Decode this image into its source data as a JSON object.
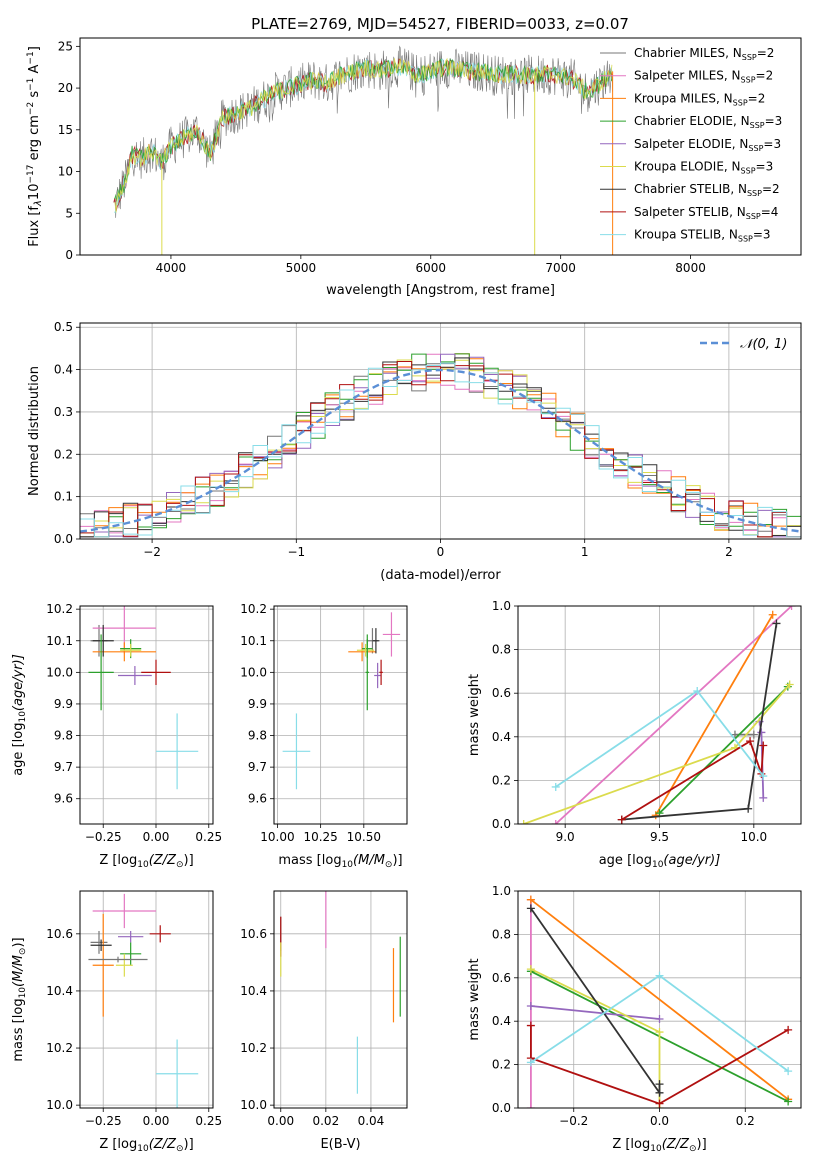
{
  "figure_title": "PLATE=2769, MJD=54527, FIBERID=0033, z=0.07",
  "colors": {
    "grid": "#b0b0b0",
    "model_colors": [
      "#777777",
      "#e377c2",
      "#ff7f0e",
      "#2ca02c",
      "#9467bd",
      "#dbdb4d",
      "#333333",
      "#b01010",
      "#88dde8"
    ]
  },
  "chart_data": [
    {
      "id": "spectrum",
      "type": "line",
      "title": "PLATE=2769, MJD=54527, FIBERID=0033, z=0.07",
      "xlabel": "wavelength [Angstrom, rest frame]",
      "ylabel_main": "Flux [f",
      "ylabel_sub": "λ",
      "ylabel_rest": "10",
      "ylabel_exp": "−17",
      "ylabel_units": " erg cm",
      "ylabel_exp2": "−2",
      "ylabel_s": " s",
      "ylabel_exp3": "−1",
      "ylabel_A": " A",
      "ylabel_exp4": "−1",
      "ylabel_end": "]",
      "xlim": [
        3300,
        8850
      ],
      "ylim": [
        0,
        26
      ],
      "xticks": [
        "4000",
        "5000",
        "6000",
        "7000",
        "8000"
      ],
      "yticks": [
        "0",
        "5",
        "10",
        "15",
        "20",
        "25"
      ],
      "xtick_values": [
        4000,
        5000,
        6000,
        7000,
        8000
      ],
      "ytick_values": [
        0,
        5,
        10,
        15,
        20,
        25
      ],
      "grid": false,
      "legend_position": "right",
      "continuum_x": [
        3560,
        3650,
        3700,
        3780,
        3850,
        3930,
        4000,
        4100,
        4200,
        4300,
        4400,
        4500,
        4600,
        4700,
        4800,
        4900,
        5000,
        5100,
        5200,
        5300,
        5400,
        5500,
        5600,
        5700,
        5800,
        5900,
        6000,
        6100,
        6200,
        6300,
        6400,
        6500,
        6600,
        6700,
        6800,
        6900,
        7000,
        7100,
        7200,
        7300,
        7400
      ],
      "continuum_y": [
        5.5,
        9,
        12,
        11.5,
        12.5,
        11,
        13,
        14,
        15,
        12,
        16.5,
        17,
        17.5,
        18.5,
        19.5,
        20,
        20.5,
        21,
        20.5,
        21.5,
        22,
        22.5,
        22,
        22.5,
        22.5,
        21.5,
        22,
        22.5,
        22.3,
        22,
        22,
        21.5,
        21.7,
        21.5,
        21.5,
        21.7,
        21.5,
        21,
        19.5,
        20.5,
        22
      ],
      "legend": [
        {
          "base": "Chabrier MILES, N",
          "sub": "SSP",
          "tail": "=2"
        },
        {
          "base": "Salpeter MILES, N",
          "sub": "SSP",
          "tail": "=2"
        },
        {
          "base": "Kroupa MILES, N",
          "sub": "SSP",
          "tail": "=2"
        },
        {
          "base": "Chabrier ELODIE, N",
          "sub": "SSP",
          "tail": "=3"
        },
        {
          "base": "Salpeter ELODIE, N",
          "sub": "SSP",
          "tail": "=3"
        },
        {
          "base": "Kroupa ELODIE, N",
          "sub": "SSP",
          "tail": "=3"
        },
        {
          "base": "Chabrier STELIB, N",
          "sub": "SSP",
          "tail": "=2"
        },
        {
          "base": "Salpeter STELIB, N",
          "sub": "SSP",
          "tail": "=4"
        },
        {
          "base": "Kroupa STELIB, N",
          "sub": "SSP",
          "tail": "=3"
        }
      ]
    },
    {
      "id": "residuals",
      "type": "line",
      "xlabel": "(data-model)/error",
      "ylabel": "Normed distribution",
      "xlim": [
        -2.5,
        2.5
      ],
      "ylim": [
        0,
        0.51
      ],
      "xticks": [
        "−2",
        "−1",
        "0",
        "1",
        "2"
      ],
      "xtick_values": [
        -2,
        -1,
        0,
        1,
        2
      ],
      "yticks": [
        "0.0",
        "0.1",
        "0.2",
        "0.3",
        "0.4",
        "0.5"
      ],
      "ytick_values": [
        0,
        0.1,
        0.2,
        0.3,
        0.4,
        0.5
      ],
      "grid": true,
      "legend_label": "𝒩(0, 1)",
      "legend_position": "top-right",
      "gaussian": {
        "mean": 0,
        "sigma": 1,
        "color": "#5b8fd6"
      },
      "bin_width": 0.1
    },
    {
      "id": "age-vs-Z",
      "type": "scatter",
      "xlabel": "Z [log",
      "xlabel_sub": "10",
      "xlabel_tail": "(Z/Z",
      "xlabel_sun": "⊙",
      "xlabel_end": ")]",
      "ylabel": "age  [log",
      "ylabel_sub": "10",
      "ylabel_tail": "(age/yr)]",
      "xlim": [
        -0.36,
        0.27
      ],
      "ylim": [
        9.52,
        10.21
      ],
      "xticks": [
        "−0.25",
        "0.00",
        "0.25"
      ],
      "xtick_values": [
        -0.25,
        0,
        0.25
      ],
      "yticks": [
        "9.6",
        "9.7",
        "9.8",
        "9.9",
        "10.0",
        "10.1",
        "10.2"
      ],
      "ytick_values": [
        9.6,
        9.7,
        9.8,
        9.9,
        10.0,
        10.1,
        10.2
      ],
      "grid": true,
      "points": [
        {
          "x": -0.27,
          "xerr": 0.04,
          "y": 10.1,
          "yerr": 0.05,
          "c": 0
        },
        {
          "x": -0.15,
          "xerr": 0.15,
          "y": 10.14,
          "yerr": 0.08,
          "c": 1
        },
        {
          "x": -0.15,
          "xerr": 0.15,
          "y": 10.065,
          "yerr": 0.03,
          "c": 2
        },
        {
          "x": -0.12,
          "xerr": 0.05,
          "y": 10.075,
          "yerr": 0.03,
          "c": 3
        },
        {
          "x": -0.1,
          "xerr": 0.08,
          "y": 9.99,
          "yerr": 0.03,
          "c": 4
        },
        {
          "x": -0.12,
          "xerr": 0.05,
          "y": 10.07,
          "yerr": 0.02,
          "c": 5
        },
        {
          "x": -0.25,
          "xerr": 0.05,
          "y": 10.1,
          "yerr": 0.05,
          "c": 6
        },
        {
          "x": 0.0,
          "xerr": 0.07,
          "y": 10.0,
          "yerr": 0.04,
          "c": 7
        },
        {
          "x": 0.1,
          "xerr": 0.1,
          "y": 9.75,
          "yerr": 0.12,
          "c": 8
        },
        {
          "x": -0.26,
          "xerr": 0.06,
          "y": 10.0,
          "yerr": 0.12,
          "c": 3
        }
      ]
    },
    {
      "id": "age-vs-mass",
      "type": "scatter",
      "xlabel": "mass [log",
      "xlabel_sub": "10",
      "xlabel_tail": "(M/M",
      "xlabel_sun": "⊙",
      "xlabel_end": ")]",
      "xlim": [
        9.98,
        10.75
      ],
      "ylim": [
        9.52,
        10.21
      ],
      "xticks": [
        "10.00",
        "10.25",
        "10.50"
      ],
      "xtick_values": [
        10.0,
        10.25,
        10.5
      ],
      "yticks": [
        "9.6",
        "9.7",
        "9.8",
        "9.9",
        "10.0",
        "10.1",
        "10.2"
      ],
      "ytick_values": [
        9.6,
        9.7,
        9.8,
        9.9,
        10.0,
        10.1,
        10.2
      ],
      "grid": true,
      "points": [
        {
          "x": 10.55,
          "xerr": 0.03,
          "y": 10.1,
          "yerr": 0.04,
          "c": 0
        },
        {
          "x": 10.66,
          "xerr": 0.05,
          "y": 10.12,
          "yerr": 0.07,
          "c": 1
        },
        {
          "x": 10.49,
          "xerr": 0.08,
          "y": 10.065,
          "yerr": 0.03,
          "c": 2
        },
        {
          "x": 10.52,
          "xerr": 0.03,
          "y": 10.075,
          "yerr": 0.03,
          "c": 3
        },
        {
          "x": 10.58,
          "xerr": 0.02,
          "y": 9.99,
          "yerr": 0.04,
          "c": 4
        },
        {
          "x": 10.51,
          "xerr": 0.05,
          "y": 10.07,
          "yerr": 0.02,
          "c": 5
        },
        {
          "x": 10.57,
          "xerr": 0.02,
          "y": 10.1,
          "yerr": 0.04,
          "c": 6
        },
        {
          "x": 10.6,
          "xerr": 0.01,
          "y": 10.0,
          "yerr": 0.04,
          "c": 7
        },
        {
          "x": 10.11,
          "xerr": 0.08,
          "y": 9.75,
          "yerr": 0.12,
          "c": 8
        },
        {
          "x": 10.52,
          "xerr": 0.01,
          "y": 10.0,
          "yerr": 0.12,
          "c": 3
        }
      ]
    },
    {
      "id": "mass-weight-vs-age",
      "type": "line",
      "xlabel": "age  [log",
      "xlabel_sub": "10",
      "xlabel_tail": "(age/yr)]",
      "ylabel": "mass weight",
      "xlim": [
        8.75,
        10.25
      ],
      "ylim": [
        0,
        1
      ],
      "xticks": [
        "9.0",
        "9.5",
        "10.0"
      ],
      "xtick_values": [
        9.0,
        9.5,
        10.0
      ],
      "yticks": [
        "0.0",
        "0.2",
        "0.4",
        "0.6",
        "0.8",
        "1.0"
      ],
      "ytick_values": [
        0,
        0.2,
        0.4,
        0.6,
        0.8,
        1.0
      ],
      "grid": true,
      "series": [
        {
          "c": 0,
          "x": [
            9.9,
            10.0
          ],
          "y": [
            0.41,
            0.41
          ]
        },
        {
          "c": 1,
          "x": [
            8.95,
            10.2
          ],
          "y": [
            0.0,
            1.0
          ]
        },
        {
          "c": 2,
          "x": [
            9.48,
            10.1
          ],
          "y": [
            0.04,
            0.96
          ]
        },
        {
          "c": 3,
          "x": [
            9.5,
            10.18
          ],
          "y": [
            0.05,
            0.63
          ]
        },
        {
          "c": 4,
          "x": [
            10.05,
            10.04,
            10.03
          ],
          "y": [
            0.12,
            0.42,
            0.47
          ]
        },
        {
          "c": 5,
          "x": [
            8.78,
            9.9,
            10.19
          ],
          "y": [
            0.0,
            0.35,
            0.64
          ]
        },
        {
          "c": 6,
          "x": [
            9.3,
            9.97,
            10.12
          ],
          "y": [
            0.02,
            0.07,
            0.92
          ]
        },
        {
          "c": 7,
          "x": [
            9.3,
            9.98,
            10.04,
            10.05
          ],
          "y": [
            0.02,
            0.38,
            0.23,
            0.36
          ]
        },
        {
          "c": 8,
          "x": [
            8.95,
            9.7,
            10.05
          ],
          "y": [
            0.17,
            0.61,
            0.22
          ]
        }
      ]
    },
    {
      "id": "mass-vs-Z",
      "type": "scatter",
      "xlabel": "Z [log",
      "xlabel_sub": "10",
      "xlabel_tail": "(Z/Z",
      "xlabel_sun": "⊙",
      "xlabel_end": ")]",
      "ylabel": "mass [log",
      "ylabel_sub": "10",
      "ylabel_tail": "(M/M",
      "ylabel_sun": "⊙",
      "ylabel_end": ")]",
      "xlim": [
        -0.36,
        0.27
      ],
      "ylim": [
        9.99,
        10.75
      ],
      "xticks": [
        "−0.25",
        "0.00",
        "0.25"
      ],
      "xtick_values": [
        -0.25,
        0,
        0.25
      ],
      "yticks": [
        "10.0",
        "10.2",
        "10.4",
        "10.6"
      ],
      "ytick_values": [
        10.0,
        10.2,
        10.4,
        10.6
      ],
      "grid": true,
      "points": [
        {
          "x": -0.27,
          "xerr": 0.04,
          "y": 10.57,
          "yerr": 0.04,
          "c": 0
        },
        {
          "x": -0.15,
          "xerr": 0.15,
          "y": 10.68,
          "yerr": 0.06,
          "c": 1
        },
        {
          "x": -0.25,
          "xerr": 0.05,
          "y": 10.49,
          "yerr": 0.18,
          "c": 2
        },
        {
          "x": -0.12,
          "xerr": 0.05,
          "y": 10.53,
          "yerr": 0.04,
          "c": 3
        },
        {
          "x": -0.12,
          "xerr": 0.06,
          "y": 10.59,
          "yerr": 0.02,
          "c": 4
        },
        {
          "x": -0.15,
          "xerr": 0.04,
          "y": 10.49,
          "yerr": 0.04,
          "c": 5
        },
        {
          "x": -0.26,
          "xerr": 0.05,
          "y": 10.56,
          "yerr": 0.02,
          "c": 6
        },
        {
          "x": 0.02,
          "xerr": 0.05,
          "y": 10.6,
          "yerr": 0.03,
          "c": 7
        },
        {
          "x": 0.1,
          "xerr": 0.1,
          "y": 10.11,
          "yerr": 0.12,
          "c": 8
        },
        {
          "x": -0.18,
          "xerr": 0.14,
          "y": 10.51,
          "yerr": 0.01,
          "c": 0
        }
      ]
    },
    {
      "id": "mass-vs-ebv",
      "type": "scatter",
      "xlabel": "E(B-V)",
      "xlim": [
        -0.003,
        0.056
      ],
      "ylim": [
        9.99,
        10.75
      ],
      "xticks": [
        "0.00",
        "0.02",
        "0.04"
      ],
      "xtick_values": [
        0.0,
        0.02,
        0.04
      ],
      "yticks": [
        "10.0",
        "10.2",
        "10.4",
        "10.6"
      ],
      "ytick_values": [
        10.0,
        10.2,
        10.4,
        10.6
      ],
      "grid": true,
      "points": [
        {
          "x": 0.0,
          "y": 10.6,
          "yerr": 0.06,
          "c": 0
        },
        {
          "x": 0.02,
          "y": 10.66,
          "yerr": 0.11,
          "c": 1
        },
        {
          "x": 0.05,
          "y": 10.42,
          "yerr": 0.13,
          "c": 2
        },
        {
          "x": 0.053,
          "y": 10.45,
          "yerr": 0.14,
          "c": 3
        },
        {
          "x": 0.0,
          "y": 10.59,
          "yerr": 0.07,
          "c": 7
        },
        {
          "x": 0.0,
          "y": 10.51,
          "yerr": 0.06,
          "c": 5
        },
        {
          "x": 0.034,
          "y": 10.14,
          "yerr": 0.1,
          "c": 8
        }
      ]
    },
    {
      "id": "mass-weight-vs-Z",
      "type": "line",
      "xlabel": "Z [log",
      "xlabel_sub": "10",
      "xlabel_tail": "(Z/Z",
      "xlabel_sun": "⊙",
      "xlabel_end": ")]",
      "ylabel": "mass weight",
      "xlim": [
        -0.33,
        0.33
      ],
      "ylim": [
        0,
        1
      ],
      "xticks": [
        "−0.2",
        "0.0",
        "0.2"
      ],
      "xtick_values": [
        -0.2,
        0.0,
        0.2
      ],
      "yticks": [
        "0.0",
        "0.2",
        "0.4",
        "0.6",
        "0.8",
        "1.0"
      ],
      "ytick_values": [
        0,
        0.2,
        0.4,
        0.6,
        0.8,
        1.0
      ],
      "grid": true,
      "series": [
        {
          "c": 1,
          "x": [
            -0.3,
            -0.3
          ],
          "y": [
            0.0,
            0.96
          ]
        },
        {
          "c": 2,
          "x": [
            -0.3,
            0.3
          ],
          "y": [
            0.96,
            0.04
          ]
        },
        {
          "c": 3,
          "x": [
            -0.3,
            0.3
          ],
          "y": [
            0.63,
            0.03
          ]
        },
        {
          "c": 4,
          "x": [
            -0.3,
            0.0
          ],
          "y": [
            0.47,
            0.41
          ]
        },
        {
          "c": 5,
          "x": [
            -0.3,
            0.0,
            0.0
          ],
          "y": [
            0.64,
            0.35,
            0.0
          ]
        },
        {
          "c": 6,
          "x": [
            -0.3,
            0.0,
            0.0
          ],
          "y": [
            0.92,
            0.07,
            0.11
          ]
        },
        {
          "c": 7,
          "x": [
            -0.3,
            -0.3,
            0.0,
            0.3
          ],
          "y": [
            0.38,
            0.23,
            0.02,
            0.36
          ]
        },
        {
          "c": 8,
          "x": [
            -0.3,
            0.0,
            0.3
          ],
          "y": [
            0.21,
            0.61,
            0.17
          ]
        }
      ]
    }
  ]
}
